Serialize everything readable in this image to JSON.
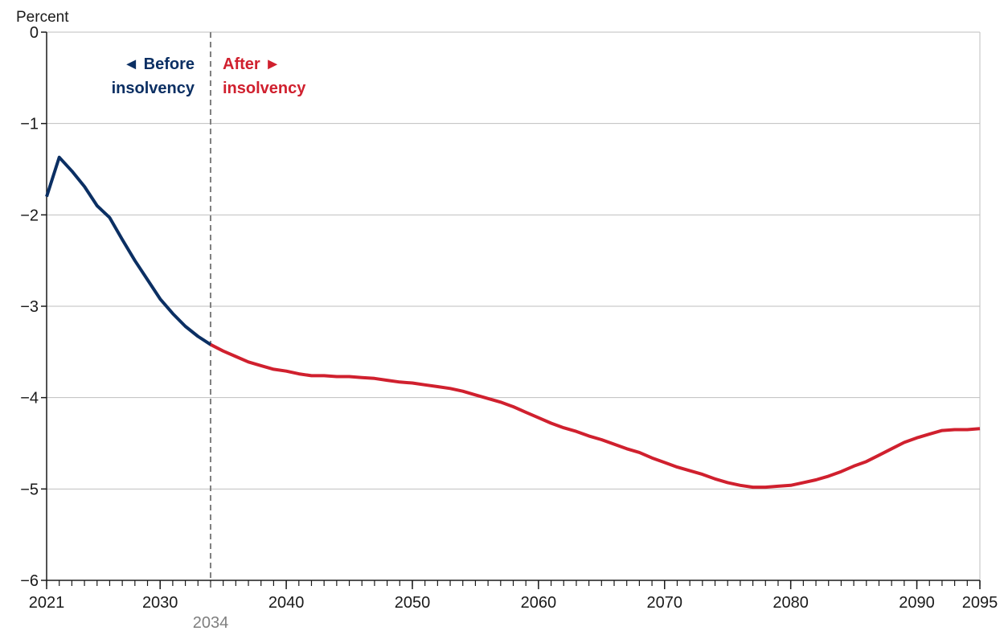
{
  "chart_data": {
    "type": "line",
    "ylabel": "Percent",
    "xlim": [
      2021,
      2095
    ],
    "ylim": [
      -6,
      0
    ],
    "grid": true,
    "x_ticks": [
      2021,
      2030,
      2040,
      2050,
      2060,
      2070,
      2080,
      2090,
      2095
    ],
    "y_ticks": [
      0,
      -1,
      -2,
      -3,
      -4,
      -5,
      -6
    ],
    "y_tick_labels": [
      "0",
      "−1",
      "−2",
      "−3",
      "−4",
      "−5",
      "−6"
    ],
    "marker": {
      "x": 2034,
      "label": "2034"
    },
    "annotations": {
      "before_line1": "◄ Before",
      "before_line2": "insolvency",
      "after_line1": "After ►",
      "after_line2": "insolvency"
    },
    "colors": {
      "before": "#0b2f63",
      "after": "#d0202e",
      "marker": "#7f7f7f",
      "grid": "#bfbfbf",
      "axis": "#1a1a1a"
    },
    "series": [
      {
        "key": "before",
        "x": [
          2021,
          2022,
          2023,
          2024,
          2025,
          2026,
          2027,
          2028,
          2029,
          2030,
          2031,
          2032,
          2033,
          2034
        ],
        "values": [
          -1.8,
          -1.37,
          -1.52,
          -1.69,
          -1.9,
          -2.03,
          -2.27,
          -2.5,
          -2.71,
          -2.92,
          -3.08,
          -3.22,
          -3.33,
          -3.42
        ]
      },
      {
        "key": "after",
        "x": [
          2034,
          2035,
          2036,
          2037,
          2038,
          2039,
          2040,
          2041,
          2042,
          2043,
          2044,
          2045,
          2046,
          2047,
          2048,
          2049,
          2050,
          2051,
          2052,
          2053,
          2054,
          2055,
          2056,
          2057,
          2058,
          2059,
          2060,
          2061,
          2062,
          2063,
          2064,
          2065,
          2066,
          2067,
          2068,
          2069,
          2070,
          2071,
          2072,
          2073,
          2074,
          2075,
          2076,
          2077,
          2078,
          2079,
          2080,
          2081,
          2082,
          2083,
          2084,
          2085,
          2086,
          2087,
          2088,
          2089,
          2090,
          2091,
          2092,
          2093,
          2094,
          2095
        ],
        "values": [
          -3.42,
          -3.49,
          -3.55,
          -3.61,
          -3.65,
          -3.69,
          -3.71,
          -3.74,
          -3.76,
          -3.76,
          -3.77,
          -3.77,
          -3.78,
          -3.79,
          -3.81,
          -3.83,
          -3.84,
          -3.86,
          -3.88,
          -3.9,
          -3.93,
          -3.97,
          -4.01,
          -4.05,
          -4.1,
          -4.16,
          -4.22,
          -4.28,
          -4.33,
          -4.37,
          -4.42,
          -4.46,
          -4.51,
          -4.56,
          -4.6,
          -4.66,
          -4.71,
          -4.76,
          -4.8,
          -4.84,
          -4.89,
          -4.93,
          -4.96,
          -4.98,
          -4.98,
          -4.97,
          -4.96,
          -4.93,
          -4.9,
          -4.86,
          -4.81,
          -4.75,
          -4.7,
          -4.63,
          -4.56,
          -4.49,
          -4.44,
          -4.4,
          -4.36,
          -4.35,
          -4.35,
          -4.34
        ]
      }
    ]
  }
}
